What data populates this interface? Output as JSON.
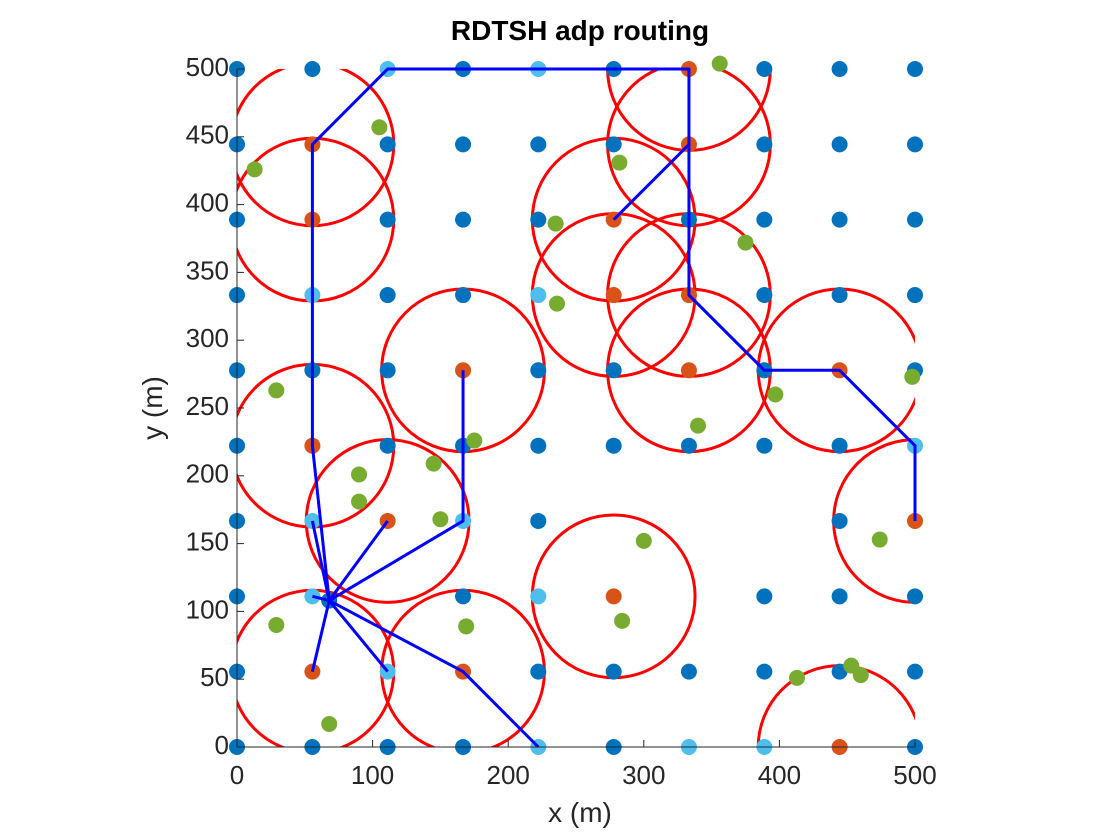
{
  "chart_data": {
    "type": "scatter",
    "title": "RDTSH adp routing",
    "xlabel": "x (m)",
    "ylabel": "y (m)",
    "xlim": [
      0,
      500
    ],
    "ylim": [
      0,
      500
    ],
    "xticks": [
      0,
      100,
      200,
      300,
      400,
      500
    ],
    "yticks": [
      0,
      50,
      100,
      150,
      200,
      250,
      300,
      350,
      400,
      450,
      500
    ],
    "series": [
      {
        "color": "#0072BD",
        "x": [
          0,
          55.6,
          166.7,
          277.8,
          388.9,
          444.4,
          500,
          0,
          111.1,
          166.7,
          222.2,
          277.8,
          388.9,
          444.4,
          500,
          0,
          111.1,
          166.7,
          222.2,
          333.3,
          388.9,
          444.4,
          500,
          0,
          111.1,
          166.7,
          388.9,
          444.4,
          500,
          0,
          55.6,
          111.1,
          222.2,
          277.8,
          388.9,
          500,
          0,
          111.1,
          166.7,
          222.2,
          277.8,
          333.3,
          388.9,
          444.4,
          0,
          222.2,
          444.4,
          0,
          166.7,
          388.9,
          444.4,
          500,
          0,
          222.2,
          277.8,
          333.3,
          388.9,
          444.4,
          500,
          0,
          55.6,
          111.1,
          166.7,
          277.8,
          500,
          68
        ],
        "y": [
          500,
          500,
          500,
          500,
          500,
          500,
          500,
          444.4,
          444.4,
          444.4,
          444.4,
          444.4,
          444.4,
          444.4,
          444.4,
          388.9,
          388.9,
          388.9,
          388.9,
          388.9,
          388.9,
          388.9,
          388.9,
          333.3,
          333.3,
          333.3,
          333.3,
          333.3,
          333.3,
          277.8,
          277.8,
          277.8,
          277.8,
          277.8,
          277.8,
          277.8,
          222.2,
          222.2,
          222.2,
          222.2,
          222.2,
          222.2,
          222.2,
          222.2,
          166.7,
          166.7,
          166.7,
          111.1,
          111.1,
          111.1,
          111.1,
          111.1,
          55.6,
          55.6,
          55.6,
          55.6,
          55.6,
          55.6,
          55.6,
          0,
          0,
          0,
          0,
          0,
          0,
          108
        ]
      },
      {
        "color": "#4DBEEE",
        "x": [
          111.1,
          222.2,
          55.6,
          222.2,
          500,
          55.6,
          166.7,
          55.6,
          222.2,
          111.1,
          222.2,
          333.3,
          388.9
        ],
        "y": [
          500,
          500,
          333.3,
          333.3,
          222.2,
          166.7,
          166.7,
          111.1,
          111.1,
          55.6,
          0,
          0,
          0
        ]
      },
      {
        "color": "#D95319",
        "x": [
          333.3,
          55.6,
          333.3,
          55.6,
          277.8,
          277.8,
          333.3,
          166.7,
          333.3,
          444.4,
          55.6,
          111.1,
          500,
          277.8,
          55.6,
          166.7,
          444.4
        ],
        "y": [
          500,
          444.4,
          444.4,
          388.9,
          388.9,
          333.3,
          333.3,
          277.8,
          277.8,
          277.8,
          222.2,
          166.7,
          166.7,
          111.1,
          55.6,
          55.6,
          0
        ]
      },
      {
        "color": "#77AC30",
        "x": [
          356,
          105,
          13,
          282,
          235,
          375,
          236,
          29,
          397,
          498,
          175,
          340,
          145,
          90,
          90,
          150,
          300,
          474,
          29,
          169,
          284,
          413,
          453,
          460,
          68
        ],
        "y": [
          504,
          457,
          426,
          431,
          386,
          372,
          327,
          263,
          260,
          273,
          226,
          237,
          209,
          201,
          181,
          168,
          152,
          153,
          90,
          89,
          93,
          51,
          60,
          53,
          17
        ]
      }
    ],
    "circle_radius": 60,
    "circle_color": "#FF0000",
    "routes": [
      {
        "color": "#0000FF",
        "x": [
          68,
          55.6
        ],
        "y": [
          108,
          55.6
        ]
      },
      {
        "color": "#0000FF",
        "x": [
          68,
          111.1
        ],
        "y": [
          108,
          55.6
        ]
      },
      {
        "color": "#0000FF",
        "x": [
          68,
          166.7,
          222.2
        ],
        "y": [
          108,
          55.6,
          0
        ]
      },
      {
        "color": "#0000FF",
        "x": [
          68,
          55.6
        ],
        "y": [
          108,
          111.1
        ]
      },
      {
        "color": "#0000FF",
        "x": [
          68,
          55.6
        ],
        "y": [
          108,
          166.7
        ]
      },
      {
        "color": "#0000FF",
        "x": [
          68,
          111.1
        ],
        "y": [
          108,
          166.7
        ]
      },
      {
        "color": "#0000FF",
        "x": [
          68,
          166.7,
          166.7
        ],
        "y": [
          108,
          166.7,
          277.8
        ]
      },
      {
        "color": "#0000FF",
        "x": [
          68,
          55.6,
          55.6,
          111.1,
          333.3,
          333.3,
          277.8
        ],
        "y": [
          108,
          222.2,
          444.4,
          500,
          500,
          444.4,
          388.9
        ]
      },
      {
        "color": "#0000FF",
        "x": [
          333.3,
          333.3,
          388.9,
          444.4,
          500,
          500
        ],
        "y": [
          444.4,
          333.3,
          277.8,
          277.8,
          222.2,
          166.7
        ]
      }
    ]
  }
}
